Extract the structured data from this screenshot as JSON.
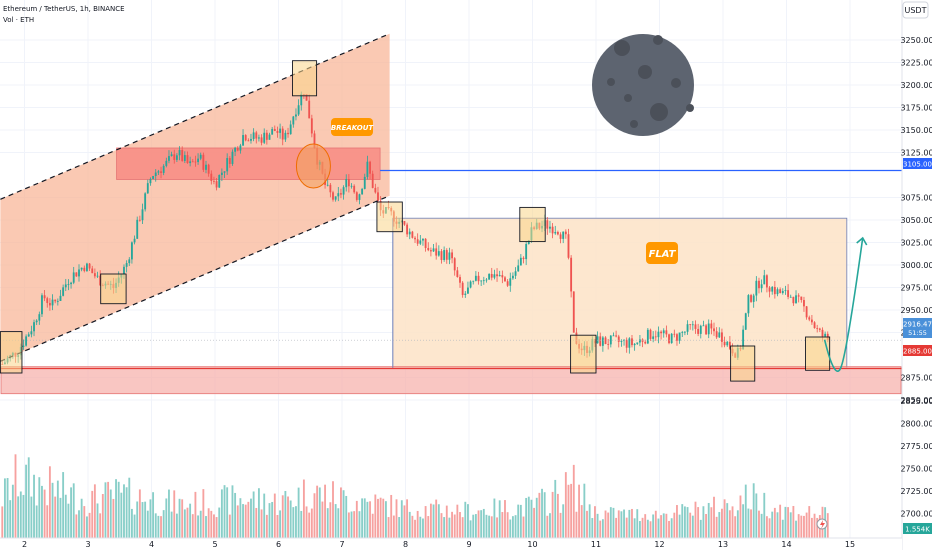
{
  "header": {
    "symbol_line": "Ethereum / TetherUS, 1h, BINANCE",
    "volume_line": "Vol · ETH",
    "currency_badge": "USDT"
  },
  "colors": {
    "up": "#26a69a",
    "down": "#ef5350",
    "channel_fill": "#f8b799",
    "breakout_zone": "#f7877f",
    "flat_fill": "#fde3c7",
    "support_zone": "#f7b3ad",
    "support_line": "#e53935",
    "resistance_line": "#2962ff",
    "box_fill": "#f9d58a",
    "forecast_arrow": "#26a69a",
    "label_orange": "#ff9800",
    "moon": "#5d6470"
  },
  "annotations": {
    "breakout_label": "BREAKOUT",
    "flat_label": "FLAT",
    "price_tag_resistance": "3105.00",
    "price_tag_support": "2885.00",
    "price_tag_last": "2916.47",
    "price_tag_countdown": "51:55",
    "volume_tag": "1.554K",
    "moon_icon": "moon-icon"
  },
  "chart_data": {
    "type": "candlestick",
    "price_axis": {
      "ticks": [
        3250,
        3225,
        3200,
        3175,
        3150,
        3125,
        3075,
        3050,
        3025,
        3000,
        2975,
        2950,
        2925,
        2875,
        2850
      ],
      "range": [
        2833,
        3272
      ]
    },
    "volume_axis": {
      "ticks": [
        2825,
        2800,
        2775,
        2750,
        2725,
        2700
      ],
      "range": [
        2680,
        2850
      ]
    },
    "x_axis": {
      "labels": [
        "2",
        "3",
        "4",
        "5",
        "6",
        "7",
        "8",
        "9",
        "10",
        "11",
        "12",
        "13",
        "14",
        "15"
      ],
      "day_range": [
        1.6,
        15.2
      ]
    },
    "candle_path": [
      [
        1.65,
        2890
      ],
      [
        1.9,
        2905
      ],
      [
        2.15,
        2935
      ],
      [
        2.3,
        2965
      ],
      [
        2.45,
        2955
      ],
      [
        2.7,
        2985
      ],
      [
        2.95,
        3000
      ],
      [
        3.15,
        2985
      ],
      [
        3.4,
        2975
      ],
      [
        3.6,
        3000
      ],
      [
        3.8,
        3050
      ],
      [
        4.0,
        3100
      ],
      [
        4.2,
        3110
      ],
      [
        4.4,
        3125
      ],
      [
        4.6,
        3110
      ],
      [
        4.75,
        3120
      ],
      [
        5.0,
        3090
      ],
      [
        5.2,
        3115
      ],
      [
        5.45,
        3145
      ],
      [
        5.7,
        3140
      ],
      [
        5.95,
        3150
      ],
      [
        6.1,
        3140
      ],
      [
        6.25,
        3170
      ],
      [
        6.4,
        3195
      ],
      [
        6.5,
        3160
      ],
      [
        6.6,
        3120
      ],
      [
        6.75,
        3085
      ],
      [
        6.9,
        3070
      ],
      [
        7.1,
        3095
      ],
      [
        7.25,
        3075
      ],
      [
        7.4,
        3110
      ],
      [
        7.6,
        3060
      ],
      [
        7.8,
        3055
      ],
      [
        7.95,
        3045
      ],
      [
        8.15,
        3030
      ],
      [
        8.4,
        3015
      ],
      [
        8.7,
        3010
      ],
      [
        8.9,
        2965
      ],
      [
        9.15,
        2985
      ],
      [
        9.4,
        2990
      ],
      [
        9.6,
        2980
      ],
      [
        9.8,
        3000
      ],
      [
        10.0,
        3040
      ],
      [
        10.2,
        3045
      ],
      [
        10.4,
        3040
      ],
      [
        10.55,
        3025
      ],
      [
        10.65,
        2920
      ],
      [
        10.8,
        2905
      ],
      [
        11.0,
        2915
      ],
      [
        11.3,
        2915
      ],
      [
        11.6,
        2912
      ],
      [
        11.9,
        2925
      ],
      [
        12.2,
        2918
      ],
      [
        12.5,
        2930
      ],
      [
        12.8,
        2928
      ],
      [
        13.0,
        2920
      ],
      [
        13.1,
        2910
      ],
      [
        13.25,
        2900
      ],
      [
        13.4,
        2960
      ],
      [
        13.6,
        2985
      ],
      [
        13.85,
        2970
      ],
      [
        14.1,
        2965
      ],
      [
        14.3,
        2950
      ],
      [
        14.5,
        2925
      ],
      [
        14.65,
        2917
      ]
    ],
    "volume_profile": [
      [
        1.65,
        2722
      ],
      [
        1.9,
        2746
      ],
      [
        2.5,
        2730
      ],
      [
        3.0,
        2718
      ],
      [
        3.5,
        2725
      ],
      [
        4.5,
        2712
      ],
      [
        5.5,
        2720
      ],
      [
        6.0,
        2715
      ],
      [
        6.5,
        2728
      ],
      [
        7.0,
        2720
      ],
      [
        7.5,
        2715
      ],
      [
        8.0,
        2708
      ],
      [
        9.0,
        2705
      ],
      [
        10.0,
        2710
      ],
      [
        10.65,
        2735
      ],
      [
        11.0,
        2702
      ],
      [
        12.0,
        2700
      ],
      [
        13.0,
        2710
      ],
      [
        13.4,
        2722
      ],
      [
        14.0,
        2705
      ],
      [
        14.65,
        2700
      ]
    ],
    "levels": {
      "resistance": 3105,
      "support": 2885,
      "support_zone": [
        2857,
        2887
      ],
      "breakout_zone": [
        3095,
        3130
      ],
      "flat_range": {
        "x_days": [
          7.8,
          14.95
        ],
        "price": [
          2885,
          3052
        ]
      }
    },
    "channel": {
      "upper": [
        [
          1.62,
          3073
        ],
        [
          7.75,
          3257
        ]
      ],
      "lower": [
        [
          1.62,
          2893
        ],
        [
          7.75,
          3077
        ]
      ]
    },
    "highlight_boxes": [
      {
        "days": [
          1.62,
          1.96
        ],
        "price": [
          2880,
          2926
        ]
      },
      {
        "days": [
          3.2,
          3.6
        ],
        "price": [
          2957,
          2990
        ]
      },
      {
        "days": [
          6.22,
          6.6
        ],
        "price": [
          3188,
          3227
        ]
      },
      {
        "days": [
          7.55,
          7.95
        ],
        "price": [
          3037,
          3070
        ]
      },
      {
        "days": [
          9.8,
          10.2
        ],
        "price": [
          3026,
          3064
        ]
      },
      {
        "days": [
          10.6,
          11.0
        ],
        "price": [
          2880,
          2922
        ]
      },
      {
        "days": [
          13.12,
          13.5
        ],
        "price": [
          2871,
          2910
        ]
      },
      {
        "days": [
          14.3,
          14.68
        ],
        "price": [
          2883,
          2920
        ]
      }
    ],
    "breakout_circle": {
      "day": 6.55,
      "price": 3110
    },
    "forecast": [
      [
        14.6,
        2917
      ],
      [
        14.85,
        2885
      ],
      [
        15.2,
        3030
      ]
    ],
    "current_price": 2916.47
  }
}
